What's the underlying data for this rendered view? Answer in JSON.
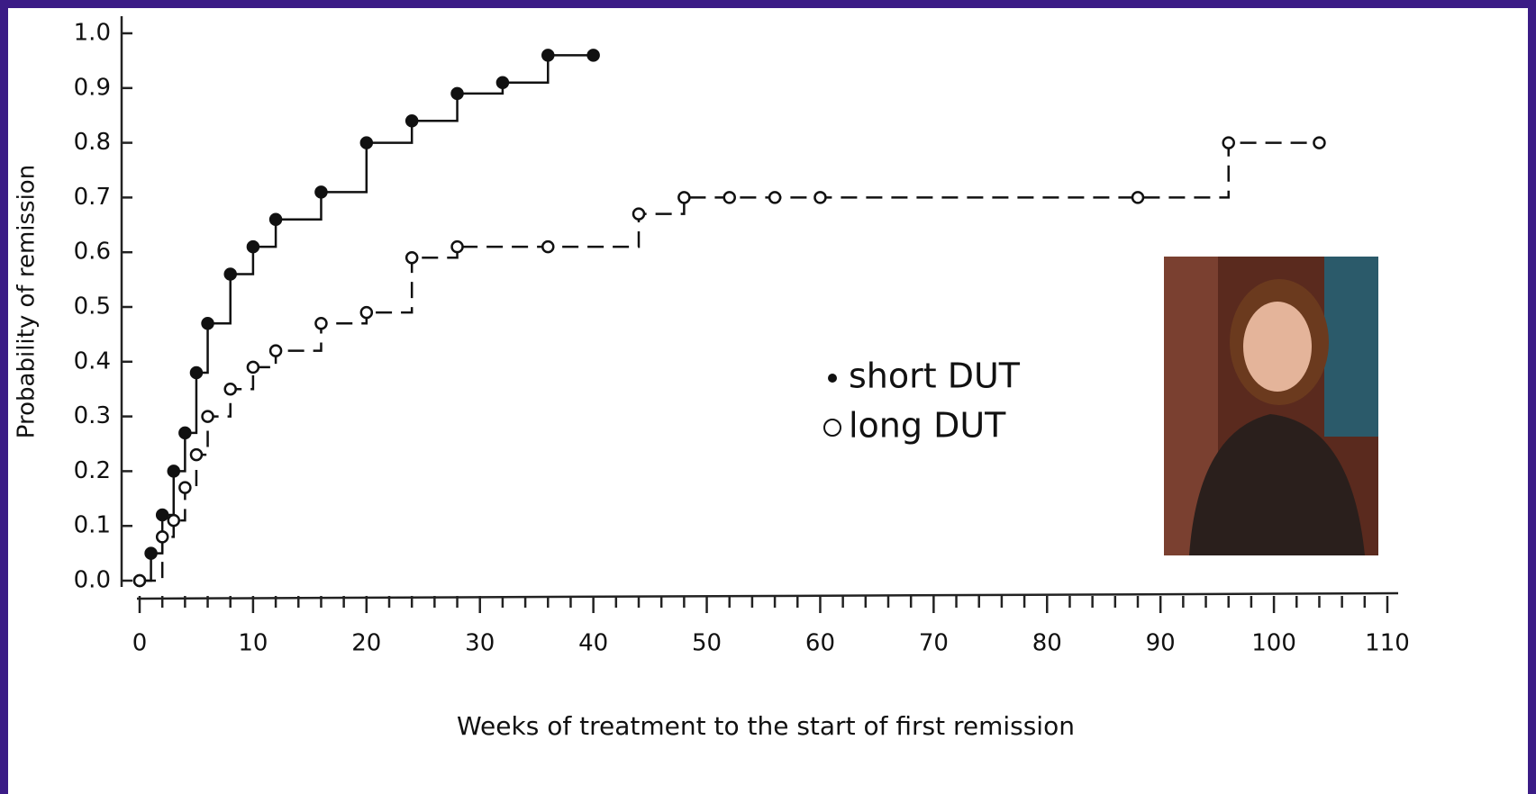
{
  "chart_data": {
    "type": "step",
    "x_label": "Weeks of treatment to the start of first remission",
    "y_label": "Probability of remission",
    "xlim": [
      0,
      110
    ],
    "xticks": [
      0,
      10,
      20,
      30,
      40,
      50,
      60,
      70,
      80,
      90,
      100,
      110
    ],
    "ylim": [
      0,
      1
    ],
    "yticks": [
      {
        "value": 0,
        "label": "0.0"
      },
      0.1,
      0.2,
      0.3,
      0.4,
      0.5,
      0.6,
      0.7,
      0.8,
      0.9,
      {
        "value": 1,
        "label": "1.0"
      }
    ],
    "series": [
      {
        "name": "short DUT",
        "color": "#111111",
        "filled": true,
        "dashed": false,
        "x": [
          0,
          1,
          2,
          3,
          4,
          5,
          6,
          8,
          10,
          12,
          16,
          20,
          24,
          28,
          32,
          36,
          40
        ],
        "values": [
          0,
          0.05,
          0.12,
          0.2,
          0.27,
          0.38,
          0.47,
          0.56,
          0.61,
          0.66,
          0.71,
          0.8,
          0.84,
          0.89,
          0.91,
          0.96,
          0.96
        ]
      },
      {
        "name": "long DUT",
        "color": "#111111",
        "filled": false,
        "dashed": true,
        "x": [
          0,
          2,
          3,
          4,
          5,
          6,
          8,
          10,
          12,
          16,
          20,
          24,
          28,
          36,
          44,
          48,
          52,
          56,
          60,
          88,
          96,
          104
        ],
        "values": [
          0,
          0.08,
          0.11,
          0.17,
          0.23,
          0.3,
          0.35,
          0.39,
          0.42,
          0.47,
          0.49,
          0.59,
          0.61,
          0.61,
          0.67,
          0.7,
          0.7,
          0.7,
          0.7,
          0.7,
          0.8,
          0.8
        ]
      }
    ]
  }
}
